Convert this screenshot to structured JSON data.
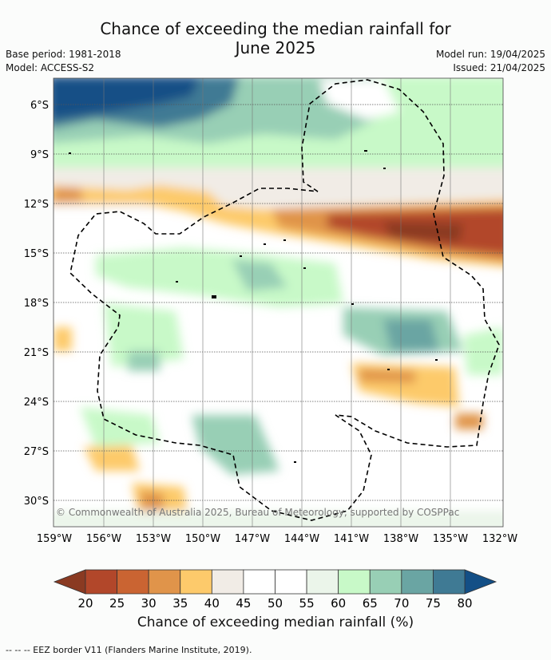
{
  "header": {
    "title_line1": "Chance of exceeding the median rainfall for",
    "title_line2": "June 2025",
    "base_period": "Base period: 1981-2018",
    "model": "Model: ACCESS-S2",
    "model_run": "Model run: 19/04/2025",
    "issued": "Issued: 21/04/2025"
  },
  "map": {
    "lat_ticks": [
      "6°S",
      "9°S",
      "12°S",
      "15°S",
      "18°S",
      "21°S",
      "24°S",
      "27°S",
      "30°S"
    ],
    "lon_ticks": [
      "159°W",
      "156°W",
      "153°W",
      "150°W",
      "147°W",
      "144°W",
      "141°W",
      "138°W",
      "135°W",
      "132°W"
    ],
    "copyright": "© Commonwealth of Australia 2025, Bureau of Meteorology, supported by COSPPac"
  },
  "colorbar": {
    "ticks": [
      "20",
      "25",
      "30",
      "35",
      "40",
      "45",
      "50",
      "55",
      "60",
      "65",
      "70",
      "75",
      "80"
    ],
    "colors": [
      "#b2472a",
      "#ca6432",
      "#e0944a",
      "#fdca6b",
      "#f1ece6",
      "#ffffff",
      "#ffffff",
      "#ebf5ea",
      "#c8f9c8",
      "#98cfb5",
      "#6aa5a3",
      "#3f7a94"
    ],
    "low_extend_color": "#8a3a22",
    "high_extend_color": "#134f86",
    "label": "Chance of exceeding median rainfall (%)"
  },
  "footer": {
    "legend": "--  --  -- EEZ border V11 (Flanders Marine Institute, 2019)."
  }
}
